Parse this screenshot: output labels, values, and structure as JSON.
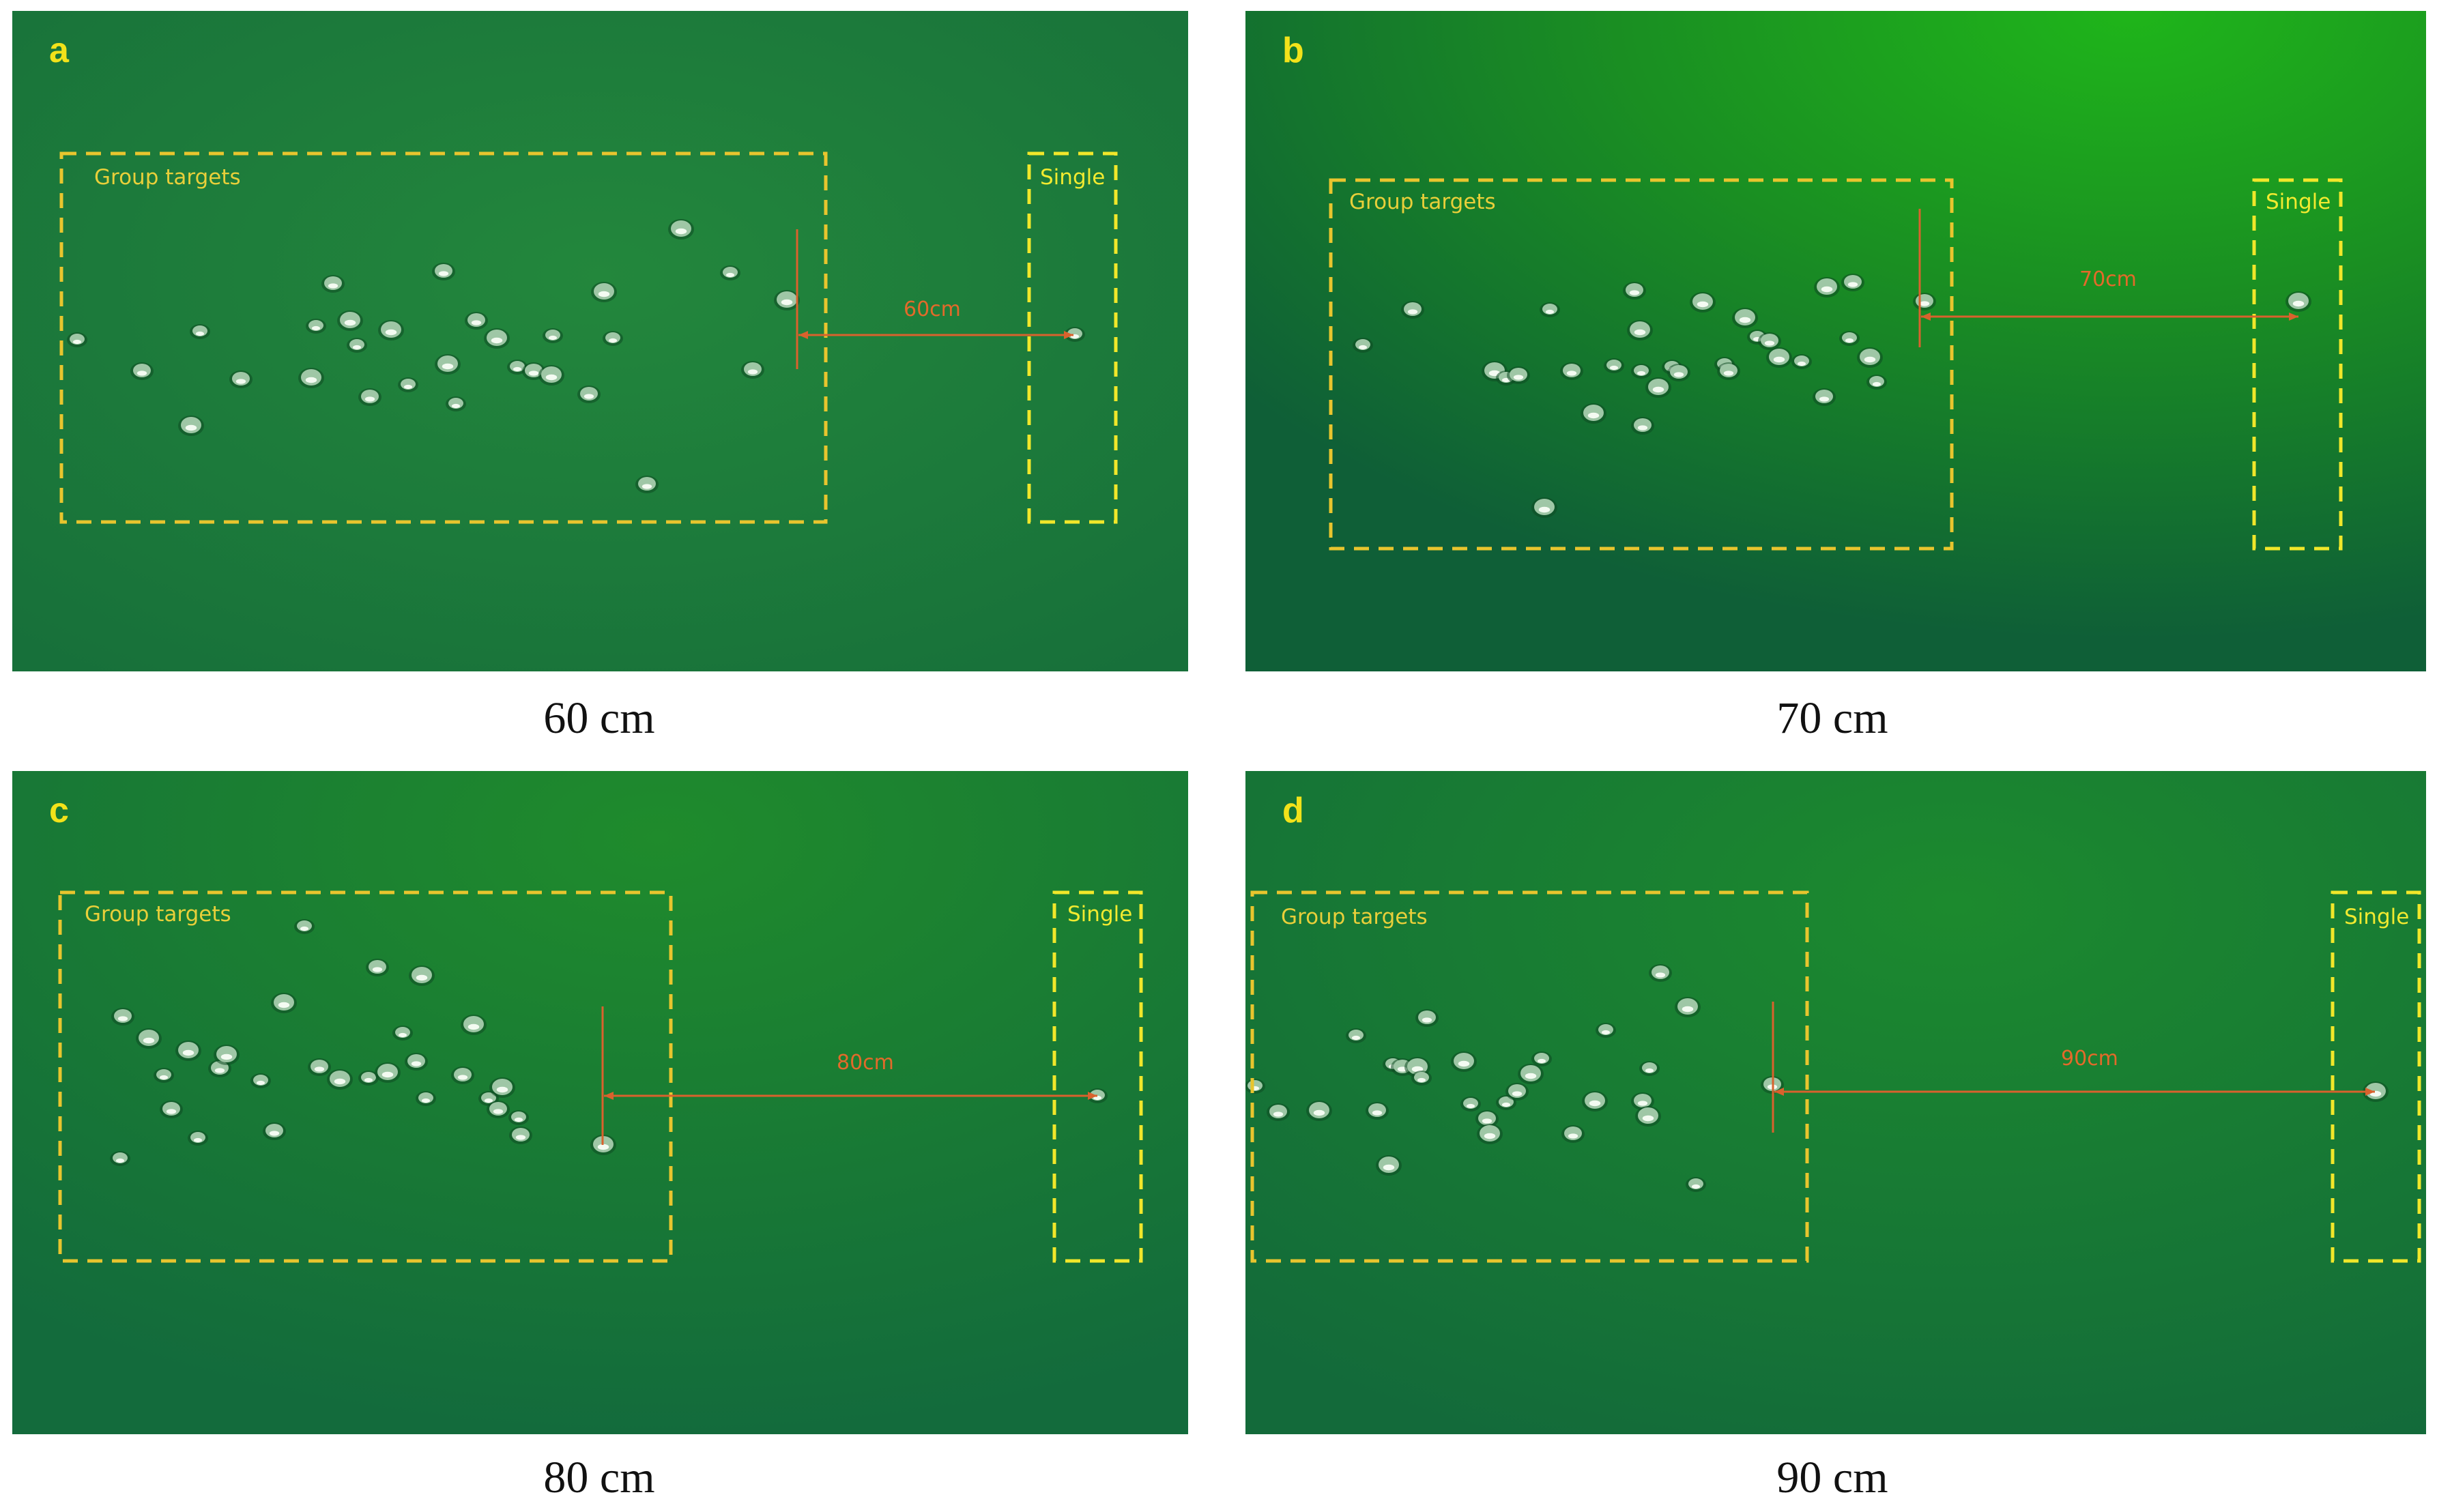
{
  "panels": [
    {
      "letter": "a",
      "caption": "60 cm",
      "group_label": "Group targets",
      "single_label": "Single",
      "distance_label": "60cm"
    },
    {
      "letter": "b",
      "caption": "70 cm",
      "group_label": "Group targets",
      "single_label": "Single",
      "distance_label": "70cm"
    },
    {
      "letter": "c",
      "caption": "80 cm",
      "group_label": "Group targets",
      "single_label": "Single",
      "distance_label": "80cm"
    },
    {
      "letter": "d",
      "caption": "90 cm",
      "group_label": "Group targets",
      "single_label": "Single",
      "distance_label": "90cm"
    }
  ],
  "colors": {
    "water": "#1c7a3a",
    "group_box": "#e8c52e",
    "single_box": "#f1e72a",
    "arrow": "#d9622d",
    "bubble": "#d9ead9"
  }
}
